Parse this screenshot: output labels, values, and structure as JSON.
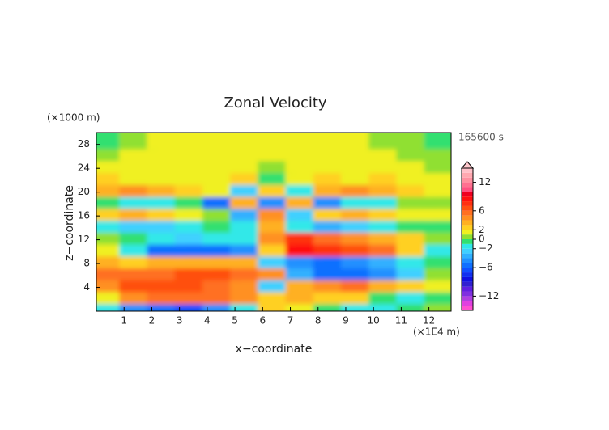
{
  "chart_data": {
    "type": "contour",
    "title": "Zonal Velocity",
    "y_unit": "(×1000 m)",
    "time_label": "165600 s",
    "y_label": "z−coordinate",
    "x_label": "x−coordinate",
    "x_unit": "(×1E4 m)",
    "x": [
      0.5,
      1.5,
      2.5,
      3.5,
      4.5,
      5.5,
      6.5,
      7.5,
      8.5,
      9.5,
      10.5,
      11.5,
      12.5
    ],
    "z": [
      1,
      3,
      5,
      7,
      9,
      11,
      13,
      15,
      17,
      19,
      21,
      23,
      25,
      27,
      29
    ],
    "values": [
      [
        -2,
        -5,
        -6,
        -7,
        -5,
        -2,
        2,
        1,
        -1,
        -2,
        -2,
        -1,
        0
      ],
      [
        1,
        4,
        5,
        5,
        5,
        4,
        2,
        3,
        2,
        2,
        -1,
        -2,
        -1
      ],
      [
        4,
        6,
        6,
        6,
        5,
        4,
        -3,
        3,
        4,
        5,
        3,
        2,
        1
      ],
      [
        5,
        5,
        5,
        6,
        6,
        5,
        4,
        -4,
        -6,
        -6,
        -5,
        -3,
        0
      ],
      [
        3,
        2,
        3,
        3,
        3,
        3,
        -3,
        -5,
        -6,
        -5,
        -4,
        -2,
        -1
      ],
      [
        1,
        -2,
        -6,
        -6,
        -6,
        -5,
        2,
        8,
        7,
        6,
        5,
        2,
        -2
      ],
      [
        0,
        -1,
        -2,
        -3,
        -2,
        -2,
        4,
        7,
        5,
        4,
        3,
        2,
        0
      ],
      [
        -2,
        -3,
        -3,
        -2,
        -1,
        -2,
        3,
        -2,
        -4,
        -3,
        -2,
        -1,
        -1
      ],
      [
        2,
        3,
        2,
        1,
        0,
        -4,
        4,
        -3,
        2,
        3,
        2,
        1,
        1
      ],
      [
        -1,
        -2,
        -2,
        -1,
        -6,
        3,
        -5,
        3,
        -5,
        -2,
        -2,
        0,
        0
      ],
      [
        3,
        4,
        3,
        2,
        1,
        -3,
        2,
        -2,
        3,
        4,
        3,
        2,
        1
      ],
      [
        2,
        1,
        1,
        1,
        1,
        2,
        -1,
        1,
        2,
        1,
        2,
        1,
        1
      ],
      [
        1,
        1,
        1,
        1,
        1,
        1,
        0,
        1,
        1,
        1,
        1,
        1,
        0
      ],
      [
        0,
        1,
        1,
        1,
        1,
        1,
        1,
        1,
        1,
        1,
        1,
        0,
        0
      ],
      [
        -1,
        0,
        1,
        1,
        1,
        1,
        1,
        1,
        1,
        1,
        0,
        0,
        -1
      ]
    ],
    "xlim": [
      0,
      12.8
    ],
    "ylim": [
      0,
      30
    ],
    "xticks": [
      1,
      2,
      3,
      4,
      5,
      6,
      7,
      8,
      9,
      10,
      11,
      12
    ],
    "yticks": [
      4,
      8,
      12,
      16,
      20,
      24,
      28
    ],
    "clim": [
      -15,
      15
    ],
    "cstep": 1,
    "colors": [
      "#ff4fd0",
      "#e040e0",
      "#b040e0",
      "#8030e0",
      "#6020e0",
      "#3020d0",
      "#1010e0",
      "#1030f0",
      "#1050ff",
      "#1070ff",
      "#2090ff",
      "#30b0ff",
      "#40d0ff",
      "#30e8e8",
      "#30e070",
      "#90e030",
      "#f0f020",
      "#ffd020",
      "#ffb020",
      "#ff9020",
      "#ff7020",
      "#ff5010",
      "#ff3010",
      "#ff1010",
      "#f00020",
      "#ff5080",
      "#ff7090",
      "#ff90a0",
      "#ffa8b0",
      "#ffc0c8"
    ],
    "cticks": [
      12,
      6,
      2,
      0,
      {
        "value": -2,
        "label": "−2"
      },
      {
        "value": -6,
        "label": "−6"
      },
      {
        "value": -12,
        "label": "−12"
      }
    ]
  }
}
